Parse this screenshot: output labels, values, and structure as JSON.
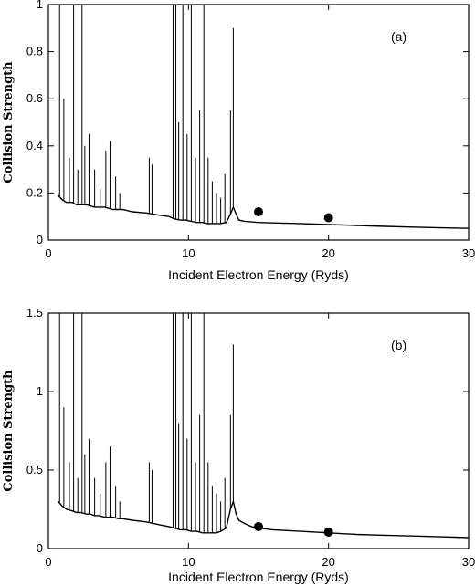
{
  "chart_data": [
    {
      "type": "line",
      "panel_label": "(a)",
      "xlabel": "Incident Electron Energy (Ryds)",
      "ylabel": "Collision Strength",
      "xlim": [
        0,
        30
      ],
      "ylim": [
        0,
        1
      ],
      "x_ticks": [
        "0",
        "10",
        "20",
        "30"
      ],
      "y_ticks": [
        "0",
        "0.2",
        "0.4",
        "0.6",
        "0.8",
        "1"
      ],
      "grid": false,
      "series": [
        {
          "style": "line",
          "x": [
            0.7,
            1.0,
            1.3,
            1.7,
            2.0,
            2.3,
            2.7,
            3.0,
            3.3,
            3.6,
            4.0,
            4.3,
            4.6,
            5.0,
            5.3,
            6.0,
            7.0,
            8.0,
            8.6,
            9.0,
            9.4,
            9.8,
            10.2,
            10.6,
            11.0,
            11.3,
            11.6,
            12.0,
            12.3,
            12.7,
            13.0,
            13.2,
            13.4,
            13.6,
            14.0,
            15.0,
            16.0,
            18.0,
            20.0,
            22.0,
            24.0,
            26.0,
            28.0,
            30.0
          ],
          "y": [
            0.19,
            0.17,
            0.16,
            0.16,
            0.15,
            0.15,
            0.15,
            0.145,
            0.14,
            0.14,
            0.14,
            0.135,
            0.13,
            0.13,
            0.13,
            0.12,
            0.115,
            0.105,
            0.1,
            0.09,
            0.085,
            0.085,
            0.08,
            0.075,
            0.075,
            0.07,
            0.07,
            0.07,
            0.07,
            0.075,
            0.11,
            0.14,
            0.11,
            0.085,
            0.08,
            0.075,
            0.073,
            0.07,
            0.066,
            0.062,
            0.058,
            0.055,
            0.052,
            0.05
          ]
        },
        {
          "style": "markers",
          "x": [
            15,
            20
          ],
          "y": [
            0.12,
            0.095
          ]
        }
      ],
      "resonance_spikes": {
        "x": [
          0.8,
          1.1,
          1.5,
          1.8,
          2.1,
          2.4,
          2.6,
          2.9,
          3.3,
          3.7,
          4.1,
          4.4,
          4.8,
          5.1,
          7.2,
          7.4,
          8.9,
          9.1,
          9.3,
          9.6,
          9.9,
          10.2,
          10.5,
          10.8,
          11.1,
          11.4,
          11.7,
          12.0,
          12.3,
          12.6,
          13.0,
          13.2
        ],
        "y": [
          1.0,
          0.6,
          0.35,
          1.0,
          0.3,
          1.0,
          0.4,
          0.45,
          0.3,
          0.22,
          0.38,
          0.42,
          0.27,
          0.2,
          0.35,
          0.32,
          1.0,
          1.0,
          0.5,
          1.0,
          0.45,
          1.0,
          0.35,
          0.55,
          1.0,
          0.35,
          0.25,
          0.2,
          0.18,
          0.28,
          0.55,
          0.9
        ]
      }
    },
    {
      "type": "line",
      "panel_label": "(b)",
      "xlabel": "Incident Electron Energy (Ryds)",
      "ylabel": "Collision Strength",
      "xlim": [
        0,
        30
      ],
      "ylim": [
        0,
        1.5
      ],
      "x_ticks": [
        "0",
        "10",
        "20",
        "30"
      ],
      "y_ticks": [
        "0",
        "0.5",
        "1",
        "1.5"
      ],
      "grid": false,
      "series": [
        {
          "style": "line",
          "x": [
            0.7,
            1.0,
            1.3,
            1.7,
            2.0,
            2.3,
            2.7,
            3.0,
            3.3,
            3.6,
            4.0,
            4.3,
            4.6,
            5.0,
            5.3,
            6.0,
            7.0,
            8.0,
            8.6,
            9.0,
            9.4,
            9.8,
            10.2,
            10.6,
            11.0,
            11.3,
            11.6,
            12.0,
            12.3,
            12.7,
            13.0,
            13.2,
            13.4,
            13.6,
            14.0,
            14.5,
            15.0,
            16.0,
            18.0,
            20.0,
            22.0,
            24.0,
            26.0,
            28.0,
            30.0
          ],
          "y": [
            0.3,
            0.27,
            0.25,
            0.24,
            0.23,
            0.23,
            0.22,
            0.22,
            0.21,
            0.21,
            0.2,
            0.2,
            0.2,
            0.19,
            0.19,
            0.18,
            0.17,
            0.15,
            0.14,
            0.13,
            0.12,
            0.12,
            0.11,
            0.11,
            0.1,
            0.1,
            0.1,
            0.1,
            0.11,
            0.13,
            0.25,
            0.3,
            0.22,
            0.18,
            0.16,
            0.14,
            0.13,
            0.12,
            0.11,
            0.1,
            0.09,
            0.085,
            0.08,
            0.075,
            0.07
          ]
        },
        {
          "style": "markers",
          "x": [
            15,
            20
          ],
          "y": [
            0.14,
            0.105
          ]
        }
      ],
      "resonance_spikes": {
        "x": [
          0.8,
          1.1,
          1.5,
          1.8,
          2.1,
          2.4,
          2.6,
          2.9,
          3.3,
          3.7,
          4.1,
          4.4,
          4.8,
          5.1,
          7.2,
          7.4,
          8.9,
          9.1,
          9.3,
          9.6,
          9.9,
          10.2,
          10.5,
          10.8,
          11.1,
          11.4,
          11.7,
          12.0,
          12.3,
          12.6,
          13.0,
          13.2
        ],
        "y": [
          1.5,
          0.9,
          0.55,
          1.5,
          0.45,
          1.5,
          0.6,
          0.7,
          0.45,
          0.35,
          0.55,
          0.65,
          0.4,
          0.3,
          0.55,
          0.5,
          1.5,
          1.5,
          0.8,
          1.5,
          0.7,
          1.5,
          0.55,
          0.85,
          1.5,
          0.55,
          0.4,
          0.35,
          0.3,
          0.45,
          0.85,
          1.3
        ]
      }
    }
  ]
}
